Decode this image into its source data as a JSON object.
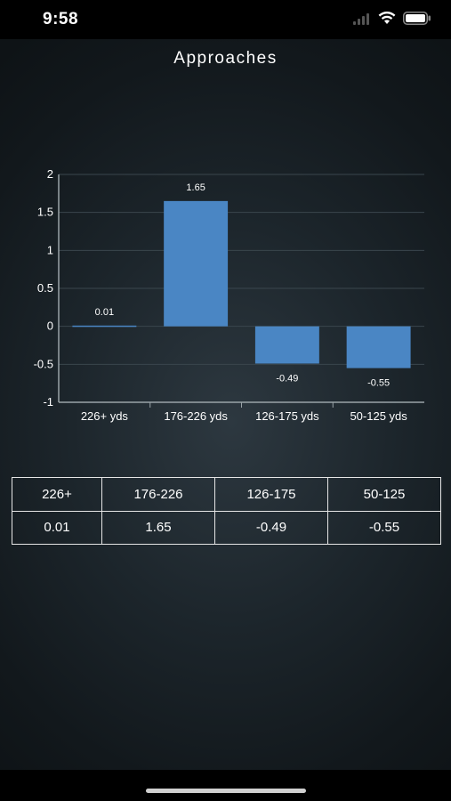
{
  "status_bar": {
    "time": "9:58"
  },
  "header": {
    "title": "Approaches"
  },
  "chart_data": {
    "type": "bar",
    "categories": [
      "226+ yds",
      "176-226 yds",
      "126-175 yds",
      "50-125 yds"
    ],
    "values": [
      0.01,
      1.65,
      -0.49,
      -0.55
    ],
    "value_labels": [
      "0.01",
      "1.65",
      "-0.49",
      "-0.55"
    ],
    "ylim": [
      -1,
      2
    ],
    "yticks": [
      2,
      1.5,
      1,
      0.5,
      0,
      -0.5,
      -1
    ],
    "ytick_labels": [
      "2",
      "1.5",
      "1",
      "0.5",
      "0",
      "-0.5",
      "-1"
    ],
    "grid": true,
    "bar_color": "#4a86c4"
  },
  "table": {
    "headers": [
      "226+",
      "176-226",
      "126-175",
      "50-125"
    ],
    "values": [
      "0.01",
      "1.65",
      "-0.49",
      "-0.55"
    ]
  },
  "colors": {
    "bar": "#4a86c4",
    "grid": "#3a464d",
    "axis": "#9aa3a8"
  }
}
